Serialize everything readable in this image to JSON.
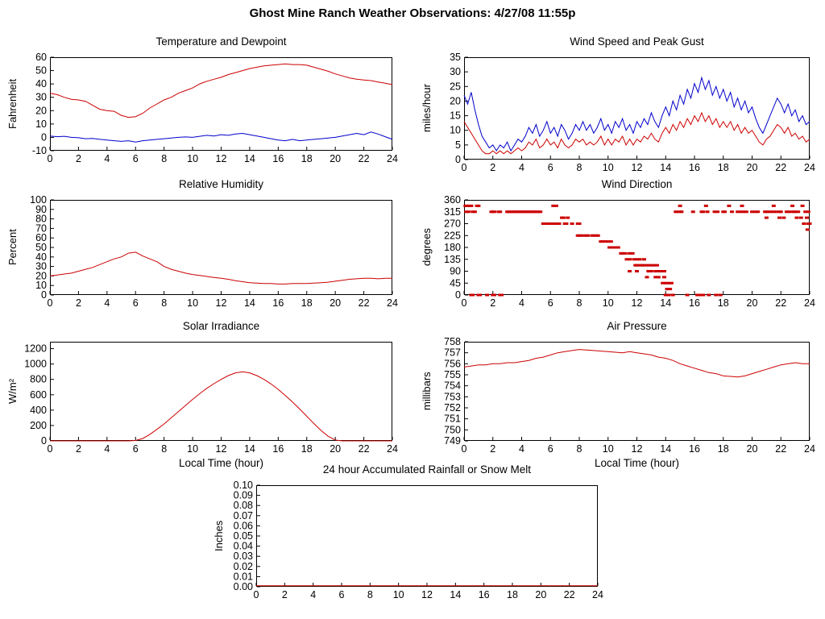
{
  "header": {
    "title": "Ghost Mine Ranch Weather Observations: 4/27/08 11:55p"
  },
  "chart_data": [
    {
      "id": "temperature-dewpoint",
      "type": "line",
      "title": "Temperature and Dewpoint",
      "ylabel": "Fahrenheit",
      "xlabel": "",
      "xlim": [
        0,
        24
      ],
      "ylim": [
        -10,
        60
      ],
      "x_ticks": [
        0,
        2,
        4,
        6,
        8,
        10,
        12,
        14,
        16,
        18,
        20,
        22,
        24
      ],
      "y_ticks": [
        -10,
        0,
        10,
        20,
        30,
        40,
        50,
        60
      ],
      "series": [
        {
          "name": "temperature",
          "color": "#cc0000",
          "x_start": 0,
          "x_step": 0.5,
          "y": [
            33,
            32,
            30,
            28.5,
            28,
            27,
            24,
            21,
            20,
            19.5,
            16.5,
            15,
            15.5,
            18,
            22,
            25,
            28,
            30,
            33,
            35,
            37,
            40,
            42,
            43.5,
            45,
            47,
            48.5,
            50,
            51.5,
            52.5,
            53.5,
            54,
            54.5,
            55,
            54.5,
            54.5,
            54,
            52.5,
            51,
            49.5,
            47.5,
            46,
            44.5,
            43.5,
            43,
            42.5,
            41.5,
            40.5,
            39.5
          ]
        },
        {
          "name": "dewpoint",
          "color": "#0000cc",
          "x_start": 0,
          "x_step": 0.5,
          "y": [
            1,
            0.5,
            0.8,
            0,
            -0.3,
            -1,
            -0.8,
            -1.5,
            -2,
            -2.5,
            -3,
            -2.5,
            -3.5,
            -2.5,
            -2,
            -1.5,
            -1,
            -0.5,
            0,
            0.3,
            0,
            0.8,
            1.5,
            1,
            2,
            1.5,
            2.5,
            3,
            2,
            1,
            0,
            -1,
            -2,
            -2.5,
            -1.5,
            -2.5,
            -2,
            -1.5,
            -1,
            -0.5,
            0,
            1,
            2,
            3,
            2,
            4,
            2.5,
            0.5,
            -1.5
          ]
        }
      ]
    },
    {
      "id": "wind-speed-gust",
      "type": "line",
      "title": "Wind Speed and Peak Gust",
      "ylabel": "miles/hour",
      "xlabel": "",
      "xlim": [
        0,
        24
      ],
      "ylim": [
        0,
        35
      ],
      "x_ticks": [
        0,
        2,
        4,
        6,
        8,
        10,
        12,
        14,
        16,
        18,
        20,
        22,
        24
      ],
      "y_ticks": [
        0,
        5,
        10,
        15,
        20,
        25,
        30,
        35
      ],
      "series": [
        {
          "name": "wind-speed",
          "color": "#cc0000",
          "x_start": 0,
          "x_step": 0.25,
          "y": [
            13,
            11,
            9,
            7,
            5,
            3,
            2,
            2,
            3,
            2,
            3,
            2,
            3,
            2,
            3,
            4,
            3,
            4,
            6,
            5,
            7,
            4,
            5,
            7,
            5,
            6,
            4,
            7,
            5,
            4,
            5,
            7,
            6,
            7,
            5,
            6,
            5,
            6,
            8,
            5,
            7,
            5,
            7,
            6,
            8,
            5,
            7,
            5,
            7,
            6,
            8,
            7,
            9,
            7,
            6,
            9,
            11,
            9,
            12,
            10,
            13,
            11,
            14,
            12,
            15,
            13,
            16,
            13,
            15,
            12,
            14,
            11,
            13,
            11,
            13,
            10,
            12,
            9,
            11,
            9,
            10,
            8,
            6,
            5,
            7,
            8,
            10,
            12,
            11,
            9,
            11,
            8,
            9,
            7,
            8,
            6,
            7
          ]
        },
        {
          "name": "peak-gust",
          "color": "#0000cc",
          "x_start": 0,
          "x_step": 0.25,
          "y": [
            22,
            19,
            23,
            17,
            12,
            8,
            6,
            4,
            5,
            3,
            5,
            4,
            6,
            3,
            5,
            7,
            6,
            8,
            11,
            9,
            12,
            8,
            10,
            13,
            9,
            11,
            8,
            12,
            10,
            7,
            9,
            12,
            10,
            13,
            10,
            12,
            9,
            11,
            14,
            10,
            12,
            9,
            13,
            11,
            14,
            10,
            12,
            9,
            13,
            11,
            14,
            12,
            16,
            13,
            11,
            15,
            18,
            15,
            20,
            17,
            22,
            19,
            24,
            21,
            26,
            23,
            28,
            24,
            27,
            22,
            25,
            21,
            24,
            20,
            23,
            18,
            21,
            17,
            20,
            16,
            18,
            14,
            11,
            9,
            12,
            15,
            18,
            21,
            19,
            16,
            19,
            15,
            17,
            13,
            15,
            12,
            13
          ]
        }
      ]
    },
    {
      "id": "relative-humidity",
      "type": "line",
      "title": "Relative Humidity",
      "ylabel": "Percent",
      "xlabel": "",
      "xlim": [
        0,
        24
      ],
      "ylim": [
        0,
        100
      ],
      "x_ticks": [
        0,
        2,
        4,
        6,
        8,
        10,
        12,
        14,
        16,
        18,
        20,
        22,
        24
      ],
      "y_ticks": [
        0,
        10,
        20,
        30,
        40,
        50,
        60,
        70,
        80,
        90,
        100
      ],
      "series": [
        {
          "name": "relative-humidity",
          "color": "#cc0000",
          "x_start": 0,
          "x_step": 0.5,
          "y": [
            20,
            21,
            22,
            23,
            25,
            27,
            29,
            32,
            35,
            38,
            40,
            44,
            45,
            41,
            38,
            35,
            30,
            27,
            25,
            23,
            21.5,
            20.5,
            19.5,
            18.5,
            17.5,
            16.5,
            15,
            14,
            13,
            12.5,
            12,
            12,
            11.5,
            11.5,
            12,
            12,
            12,
            12.5,
            13,
            13.5,
            14.5,
            15.5,
            16.5,
            17,
            17.5,
            17.5,
            17,
            17.5,
            17.5
          ]
        }
      ]
    },
    {
      "id": "wind-direction",
      "type": "scatter",
      "title": "Wind Direction",
      "ylabel": "degrees",
      "xlabel": "",
      "xlim": [
        0,
        24
      ],
      "ylim": [
        0,
        360
      ],
      "x_ticks": [
        0,
        2,
        4,
        6,
        8,
        10,
        12,
        14,
        16,
        18,
        20,
        22,
        24
      ],
      "y_ticks": [
        0,
        45,
        90,
        135,
        180,
        225,
        270,
        315,
        360
      ],
      "series": [
        {
          "name": "wind-direction",
          "color": "#cc0000",
          "x": [
            0.1,
            0.2,
            0.35,
            0.5,
            0.9,
            1.0,
            0.15,
            0.3,
            0.6,
            0.75,
            0.5,
            0.6,
            1.0,
            1.1,
            1.6,
            2.0,
            2.1,
            2.5,
            2.6,
            1.9,
            2.0,
            2.1,
            2.4,
            2.5,
            3.0,
            3.1,
            3.2,
            3.3,
            3.4,
            3.5,
            3.6,
            3.7,
            3.8,
            3.9,
            4.0,
            4.1,
            4.2,
            4.3,
            4.4,
            4.5,
            4.6,
            4.7,
            4.8,
            4.9,
            5.0,
            5.1,
            5.2,
            5.3,
            5.5,
            5.6,
            5.7,
            5.8,
            5.9,
            6.0,
            6.1,
            6.2,
            6.3,
            6.4,
            6.5,
            6.6,
            7.0,
            7.1,
            7.5,
            7.9,
            8.0,
            6.2,
            6.4,
            6.8,
            6.9,
            7.2,
            7.9,
            8.0,
            8.1,
            8.3,
            8.5,
            8.6,
            8.9,
            9.0,
            9.2,
            9.3,
            9.5,
            9.6,
            9.8,
            10.0,
            10.2,
            10.1,
            10.3,
            10.5,
            10.7,
            10.9,
            11.0,
            11.2,
            11.5,
            11.7,
            11.3,
            11.5,
            11.8,
            12.0,
            12.2,
            12.5,
            11.9,
            12.0,
            12.1,
            12.3,
            12.4,
            12.6,
            12.8,
            13.0,
            13.2,
            13.4,
            11.5,
            12.0,
            12.8,
            12.9,
            13.0,
            13.3,
            13.5,
            13.7,
            13.9,
            12.7,
            13.3,
            13.5,
            13.9,
            13.8,
            14.0,
            14.2,
            14.4,
            14.1,
            14.3,
            14.0,
            14.2,
            14.5,
            15.5,
            16.2,
            16.4,
            16.6,
            17.0,
            17.5,
            17.8,
            14.7,
            14.8,
            15.0,
            15.1,
            15.9,
            16.5,
            16.6,
            16.9,
            17.4,
            17.6,
            18.0,
            18.1,
            18.6,
            19.0,
            19.2,
            19.4,
            19.6,
            20.0,
            20.2,
            20.4,
            20.9,
            21.0,
            21.1,
            21.3,
            21.5,
            21.7,
            21.9,
            22.0,
            22.4,
            22.5,
            22.7,
            22.9,
            23.0,
            23.2,
            23.7,
            23.9,
            15.0,
            16.8,
            18.4,
            19.3,
            21.5,
            22.8,
            23.5,
            21.0,
            21.9,
            22.2,
            23.1,
            23.4,
            23.8,
            23.6,
            23.9,
            24.0,
            23.85
          ],
          "y": [
            337.5,
            337.5,
            337.5,
            337.5,
            337.5,
            337.5,
            315,
            315,
            315,
            315,
            0,
            0,
            0,
            0,
            0,
            0,
            0,
            0,
            0,
            315,
            315,
            315,
            315,
            315,
            315,
            315,
            315,
            315,
            315,
            315,
            315,
            315,
            315,
            315,
            315,
            315,
            315,
            315,
            315,
            315,
            315,
            315,
            315,
            315,
            315,
            315,
            315,
            315,
            270,
            270,
            270,
            270,
            270,
            270,
            270,
            270,
            270,
            270,
            270,
            270,
            270,
            270,
            270,
            270,
            270,
            337.5,
            337.5,
            292.5,
            292.5,
            292.5,
            225,
            225,
            225,
            225,
            225,
            225,
            225,
            225,
            225,
            225,
            202.5,
            202.5,
            202.5,
            202.5,
            202.5,
            180,
            180,
            180,
            180,
            157.5,
            157.5,
            157.5,
            157.5,
            157.5,
            135,
            135,
            135,
            135,
            135,
            135,
            112.5,
            112.5,
            112.5,
            112.5,
            112.5,
            112.5,
            112.5,
            112.5,
            112.5,
            112.5,
            90,
            90,
            90,
            90,
            90,
            90,
            90,
            90,
            90,
            67.5,
            67.5,
            67.5,
            67.5,
            45,
            45,
            45,
            45,
            22.5,
            22.5,
            0,
            0,
            0,
            0,
            0,
            0,
            0,
            0,
            0,
            0,
            315,
            315,
            315,
            315,
            315,
            315,
            315,
            315,
            315,
            315,
            315,
            315,
            315,
            315,
            315,
            315,
            315,
            315,
            315,
            315,
            315,
            315,
            315,
            315,
            315,
            315,
            315,
            315,
            315,
            315,
            315,
            315,
            315,
            315,
            315,
            315,
            337.5,
            337.5,
            337.5,
            337.5,
            337.5,
            337.5,
            337.5,
            292.5,
            292.5,
            292.5,
            292.5,
            292.5,
            292.5,
            270,
            270,
            270,
            247.5
          ]
        }
      ]
    },
    {
      "id": "solar-irradiance",
      "type": "line",
      "title": "Solar Irradiance",
      "ylabel": "W/m²",
      "xlabel": "Local Time (hour)",
      "xlim": [
        0,
        24
      ],
      "ylim": [
        0,
        1290
      ],
      "x_ticks": [
        0,
        2,
        4,
        6,
        8,
        10,
        12,
        14,
        16,
        18,
        20,
        22,
        24
      ],
      "y_ticks": [
        0,
        200,
        400,
        600,
        800,
        1000,
        1200
      ],
      "series": [
        {
          "name": "solar-irradiance",
          "color": "#cc0000",
          "x_start": 0,
          "x_step": 0.5,
          "y": [
            0,
            0,
            0,
            0,
            0,
            0,
            0,
            0,
            0,
            0,
            0,
            0,
            5,
            30,
            85,
            150,
            220,
            300,
            380,
            460,
            540,
            615,
            685,
            745,
            800,
            850,
            885,
            900,
            885,
            850,
            800,
            740,
            670,
            590,
            505,
            415,
            320,
            225,
            135,
            60,
            10,
            0,
            0,
            0,
            0,
            0,
            0,
            0,
            0
          ]
        }
      ]
    },
    {
      "id": "air-pressure",
      "type": "line",
      "title": "Air Pressure",
      "ylabel": "millibars",
      "xlabel": "Local Time (hour)",
      "xlim": [
        0,
        24
      ],
      "ylim": [
        749,
        758
      ],
      "x_ticks": [
        0,
        2,
        4,
        6,
        8,
        10,
        12,
        14,
        16,
        18,
        20,
        22,
        24
      ],
      "y_ticks": [
        749,
        750,
        751,
        752,
        753,
        754,
        755,
        756,
        757,
        758
      ],
      "series": [
        {
          "name": "air-pressure",
          "color": "#cc0000",
          "x_start": 0,
          "x_step": 0.5,
          "y": [
            755.7,
            755.8,
            755.9,
            755.9,
            756.0,
            756.0,
            756.1,
            756.1,
            756.2,
            756.3,
            756.5,
            756.6,
            756.8,
            757.0,
            757.1,
            757.2,
            757.3,
            757.25,
            757.2,
            757.15,
            757.1,
            757.05,
            757.0,
            757.1,
            757.0,
            756.9,
            756.8,
            756.6,
            756.5,
            756.3,
            756.0,
            755.8,
            755.6,
            755.4,
            755.2,
            755.1,
            754.9,
            754.85,
            754.8,
            754.9,
            755.1,
            755.3,
            755.5,
            755.7,
            755.9,
            756.0,
            756.1,
            756.0,
            756.0
          ]
        }
      ]
    },
    {
      "id": "rainfall",
      "type": "line",
      "title": "24 hour Accumulated Rainfall or Snow Melt",
      "ylabel": "Inches",
      "xlabel": "",
      "xlim": [
        0,
        24
      ],
      "ylim": [
        0,
        0.1
      ],
      "x_ticks": [
        0,
        2,
        4,
        6,
        8,
        10,
        12,
        14,
        16,
        18,
        20,
        22,
        24
      ],
      "y_ticks": [
        0,
        0.01,
        0.02,
        0.03,
        0.04,
        0.05,
        0.06,
        0.07,
        0.08,
        0.09,
        0.1
      ],
      "y_tick_labels": [
        "0.00",
        "0.01",
        "0.02",
        "0.03",
        "0.04",
        "0.05",
        "0.06",
        "0.07",
        "0.08",
        "0.09",
        "0.10"
      ],
      "series": [
        {
          "name": "accumulated-rainfall",
          "color": "#cc0000",
          "x_start": 0,
          "x_step": 24,
          "y": [
            0.001,
            0.001
          ]
        }
      ]
    }
  ]
}
